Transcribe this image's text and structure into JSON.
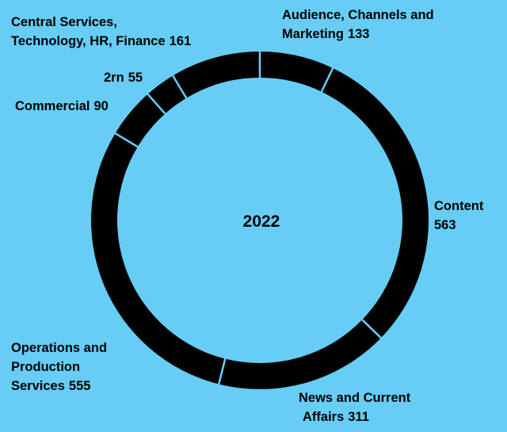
{
  "chart_data": {
    "type": "pie",
    "center_label": "2022",
    "ring_color": "#000000",
    "separator_color": "#67cdf5",
    "background": "#67cdf5",
    "slices": [
      {
        "lines": [
          "Audience, Channels and",
          "Marketing"
        ],
        "value": 133
      },
      {
        "lines": [
          "Content"
        ],
        "value": 563
      },
      {
        "lines": [
          "News and Current",
          "Affairs"
        ],
        "value": 311
      },
      {
        "lines": [
          "Operations and",
          "Production",
          "Services"
        ],
        "value": 555
      },
      {
        "lines": [
          "Commercial"
        ],
        "value": 90
      },
      {
        "lines": [
          "2rn"
        ],
        "value": 55
      },
      {
        "lines": [
          "Central Services,",
          "Technology, HR, Finance"
        ],
        "value": 161
      }
    ]
  }
}
